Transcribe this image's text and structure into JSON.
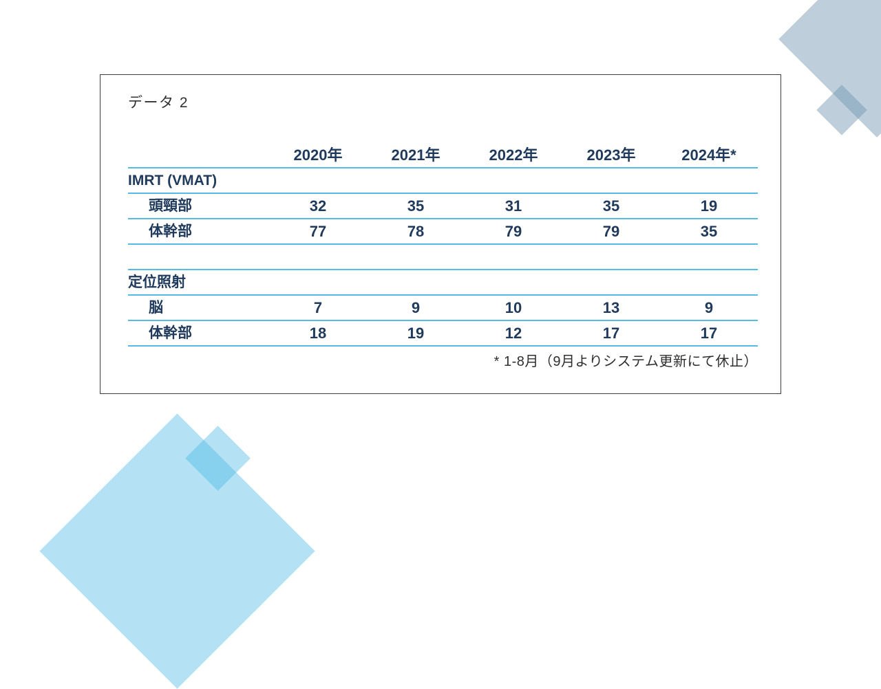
{
  "slide": {
    "title": "データ 2",
    "footnote": "* 1-8月（9月よりシステム更新にて休止）"
  },
  "table": {
    "columns": [
      "2020年",
      "2021年",
      "2022年",
      "2023年",
      "2024年*"
    ],
    "sections": [
      {
        "header": "IMRT (VMAT)",
        "rows": [
          {
            "label": "頭頸部",
            "values": [
              "32",
              "35",
              "31",
              "35",
              "19"
            ]
          },
          {
            "label": "体幹部",
            "values": [
              "77",
              "78",
              "79",
              "79",
              "35"
            ]
          }
        ]
      },
      {
        "header": "定位照射",
        "rows": [
          {
            "label": "脳",
            "values": [
              "7",
              "9",
              "10",
              "13",
              "9"
            ]
          },
          {
            "label": "体幹部",
            "values": [
              "18",
              "19",
              "12",
              "17",
              "17"
            ]
          }
        ]
      }
    ]
  },
  "colors": {
    "table_line": "#56bbe2",
    "table_text": "#1f3a5c",
    "frame_border": "#3c3c3c",
    "title_text": "#303030",
    "deco_blue_gray": "rgba(111,148,175,0.45)",
    "deco_light_blue": "rgba(76,186,229,0.42)"
  }
}
